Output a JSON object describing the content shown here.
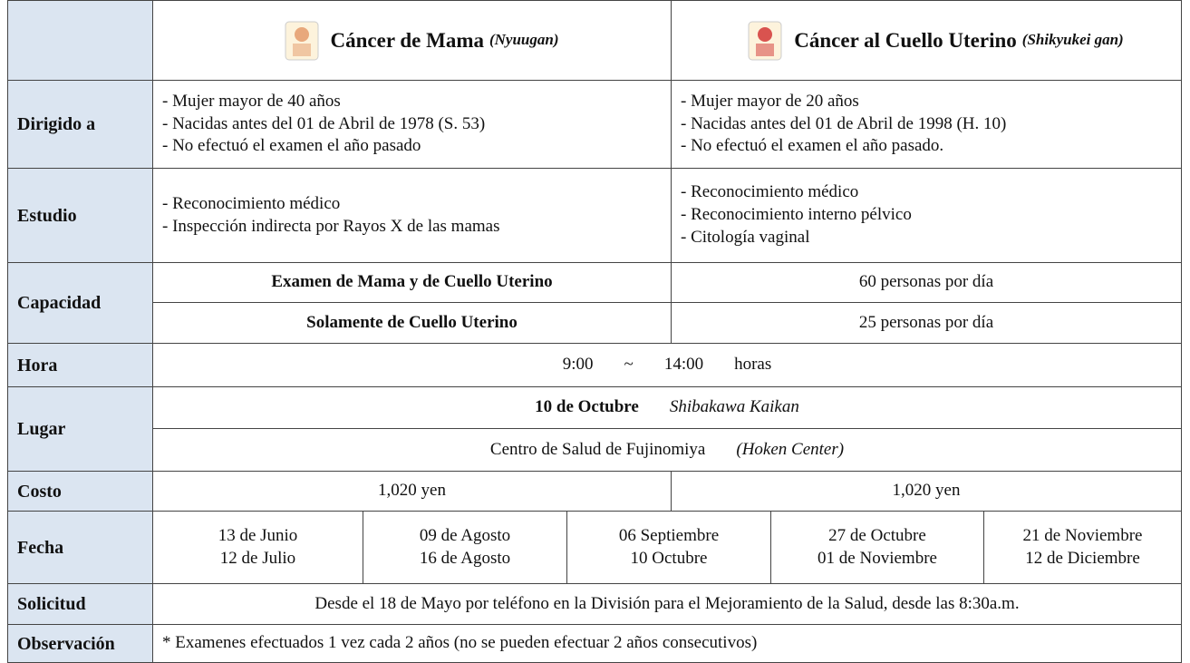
{
  "header": {
    "mama": {
      "title": "Cáncer de Mama",
      "note": "(Nyuugan)"
    },
    "cuello": {
      "title": "Cáncer al Cuello Uterino",
      "note": "(Shikyukei gan)"
    }
  },
  "dirigido": {
    "label": "Dirigido a",
    "mama": [
      "- Mujer mayor de 40 años",
      "- Nacidas antes del 01 de Abril de 1978 (S. 53)",
      "- No efectuó el examen el año pasado"
    ],
    "cuello": [
      "- Mujer mayor de 20 años",
      "- Nacidas antes del 01 de Abril de 1998 (H. 10)",
      "- No efectuó el examen el año pasado."
    ]
  },
  "estudio": {
    "label": "Estudio",
    "mama": [
      "- Reconocimiento médico",
      "- Inspección indirecta por Rayos X de las mamas"
    ],
    "cuello": [
      "- Reconocimiento médico",
      "- Reconocimiento interno pélvico",
      "- Citología vaginal"
    ]
  },
  "capacidad": {
    "label": "Capacidad",
    "rows": [
      [
        "Examen de Mama y de Cuello Uterino",
        "60 personas por día"
      ],
      [
        "Solamente de Cuello Uterino",
        "25 personas por día"
      ]
    ]
  },
  "hora": {
    "label": "Hora",
    "start": "9:00",
    "separator": "~",
    "end": "14:00",
    "unit": "horas"
  },
  "lugar": {
    "label": "Lugar",
    "date": "10 de Octubre",
    "place": "Shibakawa Kaikan",
    "center": "Centro de Salud de Fujinomiya",
    "center_note": "(Hoken Center)"
  },
  "costo": {
    "label": "Costo",
    "mama": "1,020 yen",
    "cuello": "1,020 yen"
  },
  "fecha": {
    "label": "Fecha",
    "columns": [
      [
        "13 de Junio",
        "12 de Julio"
      ],
      [
        "09 de Agosto",
        "16 de Agosto"
      ],
      [
        "06 Septiembre",
        "10 Octubre"
      ],
      [
        "27 de Octubre",
        "01 de Noviembre"
      ],
      [
        "21 de Noviembre",
        "12 de Diciembre"
      ]
    ]
  },
  "solicitud": {
    "label": "Solicitud",
    "text": "Desde el 18 de Mayo por teléfono en la División para el Mejoramiento de la Salud, desde las 8:30a.m."
  },
  "observacion": {
    "label": "Observación",
    "text": "* Examenes efectuados 1 vez cada 2 años (no se pueden efectuar 2 años consecutivos)"
  }
}
